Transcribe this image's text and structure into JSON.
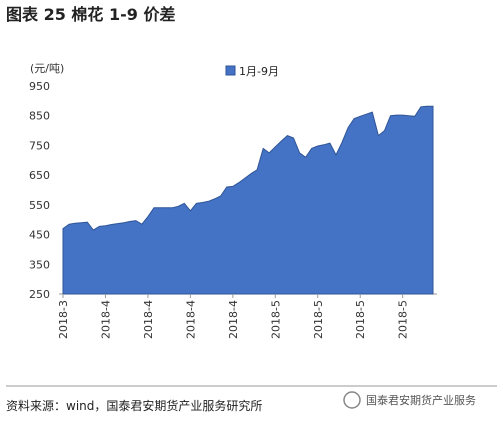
{
  "header": {
    "title": "图表 25 棉花 1-9 价差"
  },
  "chart_data": {
    "type": "area",
    "y_label": "(元/吨)",
    "categories": [
      "2018-3",
      null,
      null,
      null,
      null,
      null,
      null,
      "2018-4",
      null,
      null,
      null,
      null,
      null,
      null,
      "2018-4",
      null,
      null,
      null,
      null,
      null,
      null,
      "2018-4",
      null,
      null,
      null,
      null,
      null,
      null,
      "2018-4",
      null,
      null,
      null,
      null,
      null,
      null,
      "2018-5",
      null,
      null,
      null,
      null,
      null,
      null,
      "2018-5",
      null,
      null,
      null,
      null,
      null,
      null,
      "2018-5",
      null,
      null,
      null,
      null,
      null,
      null,
      "2018-5",
      null,
      null,
      null,
      null,
      null
    ],
    "series": [
      {
        "name": "1月-9月",
        "color": "#4472c4",
        "values": [
          470,
          485,
          488,
          490,
          492,
          465,
          478,
          480,
          484,
          487,
          490,
          494,
          497,
          485,
          510,
          540,
          540,
          540,
          540,
          545,
          555,
          530,
          555,
          558,
          562,
          570,
          580,
          610,
          612,
          625,
          640,
          655,
          668,
          740,
          725,
          745,
          765,
          783,
          775,
          725,
          710,
          740,
          748,
          752,
          758,
          718,
          760,
          810,
          840,
          848,
          855,
          862,
          783,
          800,
          850,
          852,
          852,
          850,
          848,
          880,
          882,
          882
        ]
      }
    ],
    "ylim": [
      250,
      950
    ],
    "yticks": [
      250,
      350,
      450,
      550,
      650,
      750,
      850,
      950
    ],
    "legend": "top"
  },
  "footer": {
    "source": "资料来源：wind，国泰君安期货产业服务研究所",
    "watermark": "国泰君安期货产业服务"
  }
}
